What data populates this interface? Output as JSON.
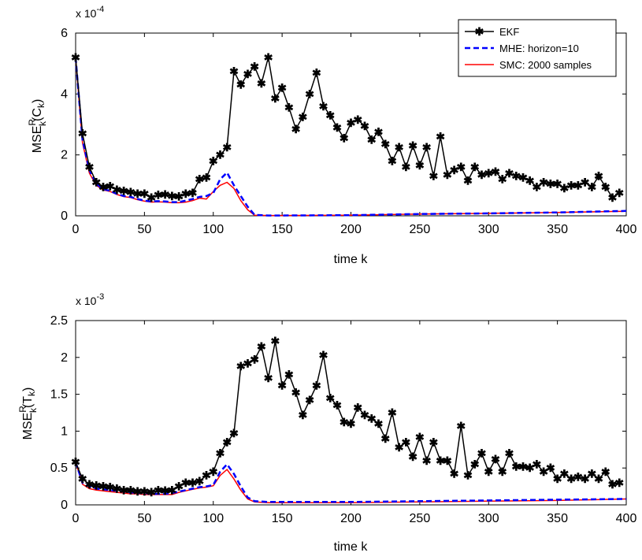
{
  "colors": {
    "ekf": "#000000",
    "mhe": "#0000ff",
    "smc": "#ff0000",
    "axis": "#000000"
  },
  "legend": {
    "entries": [
      "EKF",
      "MHE: horizon=10",
      "SMC: 2000 samples"
    ],
    "placement": "top-right"
  },
  "chart_data": [
    {
      "type": "line",
      "exponent_label": "x 10",
      "exponent_power": "-4",
      "xlabel": "time k",
      "ylabel": "MSE",
      "ylabel_sup": "R",
      "ylabel_sub": "k",
      "ylabel_arg_open": "(C",
      "ylabel_arg_sub": "k",
      "ylabel_arg_close": ")",
      "xlim": [
        0,
        400
      ],
      "ylim": [
        0,
        6
      ],
      "xticks": [
        "0",
        "50",
        "100",
        "150",
        "200",
        "250",
        "300",
        "350",
        "400"
      ],
      "yticks": [
        "0",
        "2",
        "4",
        "6"
      ],
      "grid": false,
      "series": [
        {
          "name": "EKF",
          "style": "solid-star",
          "x": [
            0,
            5,
            10,
            15,
            20,
            25,
            30,
            35,
            40,
            45,
            50,
            55,
            60,
            65,
            70,
            75,
            80,
            85,
            90,
            95,
            100,
            105,
            110,
            115,
            120,
            125,
            130,
            135,
            140,
            145,
            150,
            155,
            160,
            165,
            170,
            175,
            180,
            185,
            190,
            195,
            200,
            205,
            210,
            215,
            220,
            225,
            230,
            235,
            240,
            245,
            250,
            255,
            260,
            265,
            270,
            275,
            280,
            285,
            290,
            295,
            300,
            305,
            310,
            315,
            320,
            325,
            330,
            335,
            340,
            345,
            350,
            355,
            360,
            365,
            370,
            375,
            380,
            385,
            390,
            395
          ],
          "y": [
            5.2,
            2.7,
            1.6,
            1.1,
            0.95,
            0.97,
            0.85,
            0.82,
            0.78,
            0.72,
            0.72,
            0.6,
            0.68,
            0.7,
            0.65,
            0.63,
            0.72,
            0.75,
            1.2,
            1.25,
            1.8,
            2.0,
            2.25,
            4.75,
            4.3,
            4.65,
            4.9,
            4.35,
            5.2,
            3.85,
            4.2,
            3.55,
            2.85,
            3.25,
            4.0,
            4.7,
            3.6,
            3.3,
            2.9,
            2.55,
            3.05,
            3.15,
            2.95,
            2.5,
            2.75,
            2.35,
            1.8,
            2.25,
            1.6,
            2.3,
            1.65,
            2.25,
            1.3,
            2.6,
            1.35,
            1.5,
            1.6,
            1.15,
            1.6,
            1.35,
            1.4,
            1.45,
            1.2,
            1.4,
            1.3,
            1.25,
            1.15,
            0.95,
            1.1,
            1.05,
            1.05,
            0.9,
            1.0,
            1.0,
            1.1,
            0.95,
            1.3,
            0.95,
            0.6,
            0.75
          ]
        },
        {
          "name": "MHE: horizon=10",
          "style": "dashed",
          "x": [
            0,
            5,
            10,
            15,
            20,
            25,
            30,
            35,
            40,
            45,
            50,
            55,
            60,
            65,
            70,
            75,
            80,
            85,
            90,
            95,
            100,
            105,
            110,
            115,
            120,
            125,
            130,
            140,
            150,
            200,
            250,
            300,
            350,
            400
          ],
          "y": [
            5.2,
            2.5,
            1.5,
            1.05,
            0.88,
            0.82,
            0.72,
            0.65,
            0.62,
            0.55,
            0.5,
            0.47,
            0.48,
            0.47,
            0.45,
            0.45,
            0.5,
            0.55,
            0.62,
            0.65,
            0.75,
            1.2,
            1.42,
            1.0,
            0.65,
            0.3,
            0.03,
            0.01,
            0.01,
            0.02,
            0.06,
            0.08,
            0.11,
            0.16
          ]
        },
        {
          "name": "SMC: 2000 samples",
          "style": "solid",
          "x": [
            0,
            5,
            10,
            15,
            20,
            25,
            30,
            35,
            40,
            45,
            50,
            55,
            60,
            65,
            70,
            75,
            80,
            85,
            90,
            95,
            100,
            105,
            110,
            115,
            120,
            125,
            130,
            140,
            150,
            200,
            250,
            300,
            350,
            400
          ],
          "y": [
            5.2,
            2.4,
            1.4,
            1.0,
            0.85,
            0.8,
            0.7,
            0.63,
            0.6,
            0.53,
            0.48,
            0.45,
            0.46,
            0.45,
            0.43,
            0.43,
            0.45,
            0.5,
            0.58,
            0.55,
            0.8,
            1.0,
            1.1,
            0.9,
            0.5,
            0.2,
            0.02,
            0.01,
            0.01,
            0.02,
            0.06,
            0.08,
            0.11,
            0.15
          ]
        }
      ]
    },
    {
      "type": "line",
      "exponent_label": "x 10",
      "exponent_power": "-3",
      "xlabel": "time k",
      "ylabel": "MSE",
      "ylabel_sup": "R",
      "ylabel_sub": "k",
      "ylabel_arg_open": "(T",
      "ylabel_arg_sub": "k",
      "ylabel_arg_close": ")",
      "xlim": [
        0,
        400
      ],
      "ylim": [
        0,
        2.5
      ],
      "xticks": [
        "0",
        "50",
        "100",
        "150",
        "200",
        "250",
        "300",
        "350",
        "400"
      ],
      "yticks": [
        "0",
        "0.5",
        "1",
        "1.5",
        "2",
        "2.5"
      ],
      "grid": false,
      "series": [
        {
          "name": "EKF",
          "style": "solid-star",
          "x": [
            0,
            5,
            10,
            15,
            20,
            25,
            30,
            35,
            40,
            45,
            50,
            55,
            60,
            65,
            70,
            75,
            80,
            85,
            90,
            95,
            100,
            105,
            110,
            115,
            120,
            125,
            130,
            135,
            140,
            145,
            150,
            155,
            160,
            165,
            170,
            175,
            180,
            185,
            190,
            195,
            200,
            205,
            210,
            215,
            220,
            225,
            230,
            235,
            240,
            245,
            250,
            255,
            260,
            265,
            270,
            275,
            280,
            285,
            290,
            295,
            300,
            305,
            310,
            315,
            320,
            325,
            330,
            335,
            340,
            345,
            350,
            355,
            360,
            365,
            370,
            375,
            380,
            385,
            390,
            395
          ],
          "y": [
            0.58,
            0.35,
            0.28,
            0.26,
            0.25,
            0.24,
            0.22,
            0.2,
            0.2,
            0.18,
            0.18,
            0.17,
            0.2,
            0.19,
            0.2,
            0.25,
            0.3,
            0.3,
            0.32,
            0.4,
            0.45,
            0.7,
            0.85,
            0.97,
            1.88,
            1.92,
            1.97,
            2.15,
            1.72,
            2.22,
            1.62,
            1.77,
            1.52,
            1.22,
            1.42,
            1.62,
            2.03,
            1.45,
            1.35,
            1.12,
            1.1,
            1.32,
            1.22,
            1.17,
            1.1,
            0.9,
            1.25,
            0.78,
            0.85,
            0.65,
            0.92,
            0.6,
            0.85,
            0.6,
            0.6,
            0.42,
            1.07,
            0.4,
            0.55,
            0.7,
            0.45,
            0.62,
            0.45,
            0.7,
            0.52,
            0.52,
            0.5,
            0.55,
            0.45,
            0.5,
            0.35,
            0.42,
            0.35,
            0.38,
            0.35,
            0.42,
            0.35,
            0.45,
            0.28,
            0.3
          ]
        },
        {
          "name": "MHE: horizon=10",
          "style": "dashed",
          "x": [
            0,
            5,
            10,
            15,
            20,
            25,
            30,
            35,
            40,
            45,
            50,
            55,
            60,
            65,
            70,
            75,
            80,
            85,
            90,
            95,
            100,
            105,
            110,
            115,
            120,
            125,
            130,
            140,
            150,
            200,
            250,
            300,
            350,
            400
          ],
          "y": [
            0.58,
            0.3,
            0.25,
            0.22,
            0.21,
            0.2,
            0.19,
            0.18,
            0.17,
            0.16,
            0.16,
            0.15,
            0.15,
            0.15,
            0.16,
            0.18,
            0.2,
            0.22,
            0.24,
            0.25,
            0.27,
            0.45,
            0.55,
            0.42,
            0.25,
            0.1,
            0.05,
            0.04,
            0.04,
            0.04,
            0.05,
            0.06,
            0.07,
            0.08
          ]
        },
        {
          "name": "SMC: 2000 samples",
          "style": "solid",
          "x": [
            0,
            5,
            10,
            15,
            20,
            25,
            30,
            35,
            40,
            45,
            50,
            55,
            60,
            65,
            70,
            75,
            80,
            85,
            90,
            95,
            100,
            105,
            110,
            115,
            120,
            125,
            130,
            140,
            150,
            200,
            250,
            300,
            350,
            400
          ],
          "y": [
            0.58,
            0.28,
            0.22,
            0.2,
            0.19,
            0.18,
            0.17,
            0.16,
            0.15,
            0.15,
            0.14,
            0.14,
            0.14,
            0.14,
            0.14,
            0.17,
            0.19,
            0.21,
            0.23,
            0.24,
            0.26,
            0.4,
            0.48,
            0.35,
            0.2,
            0.08,
            0.04,
            0.03,
            0.03,
            0.03,
            0.04,
            0.05,
            0.06,
            0.08
          ]
        }
      ]
    }
  ]
}
